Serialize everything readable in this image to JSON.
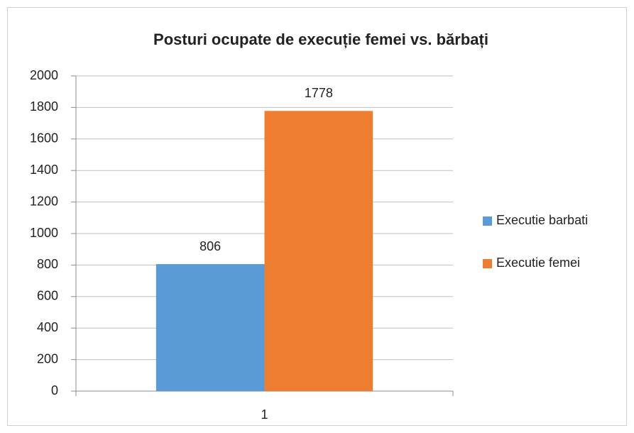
{
  "chart_data": {
    "type": "bar",
    "title": "Posturi ocupate de execuție femei vs. bărbați",
    "categories": [
      "1"
    ],
    "series": [
      {
        "name": "Executie barbati",
        "color": "#5b9bd5",
        "values": [
          806
        ]
      },
      {
        "name": "Executie femei",
        "color": "#ed7d31",
        "values": [
          1778
        ]
      }
    ],
    "ylim": [
      0,
      2000
    ],
    "yticks": [
      0,
      200,
      400,
      600,
      800,
      1000,
      1200,
      1400,
      1600,
      1800,
      2000
    ],
    "grid": true,
    "legend": "right"
  }
}
